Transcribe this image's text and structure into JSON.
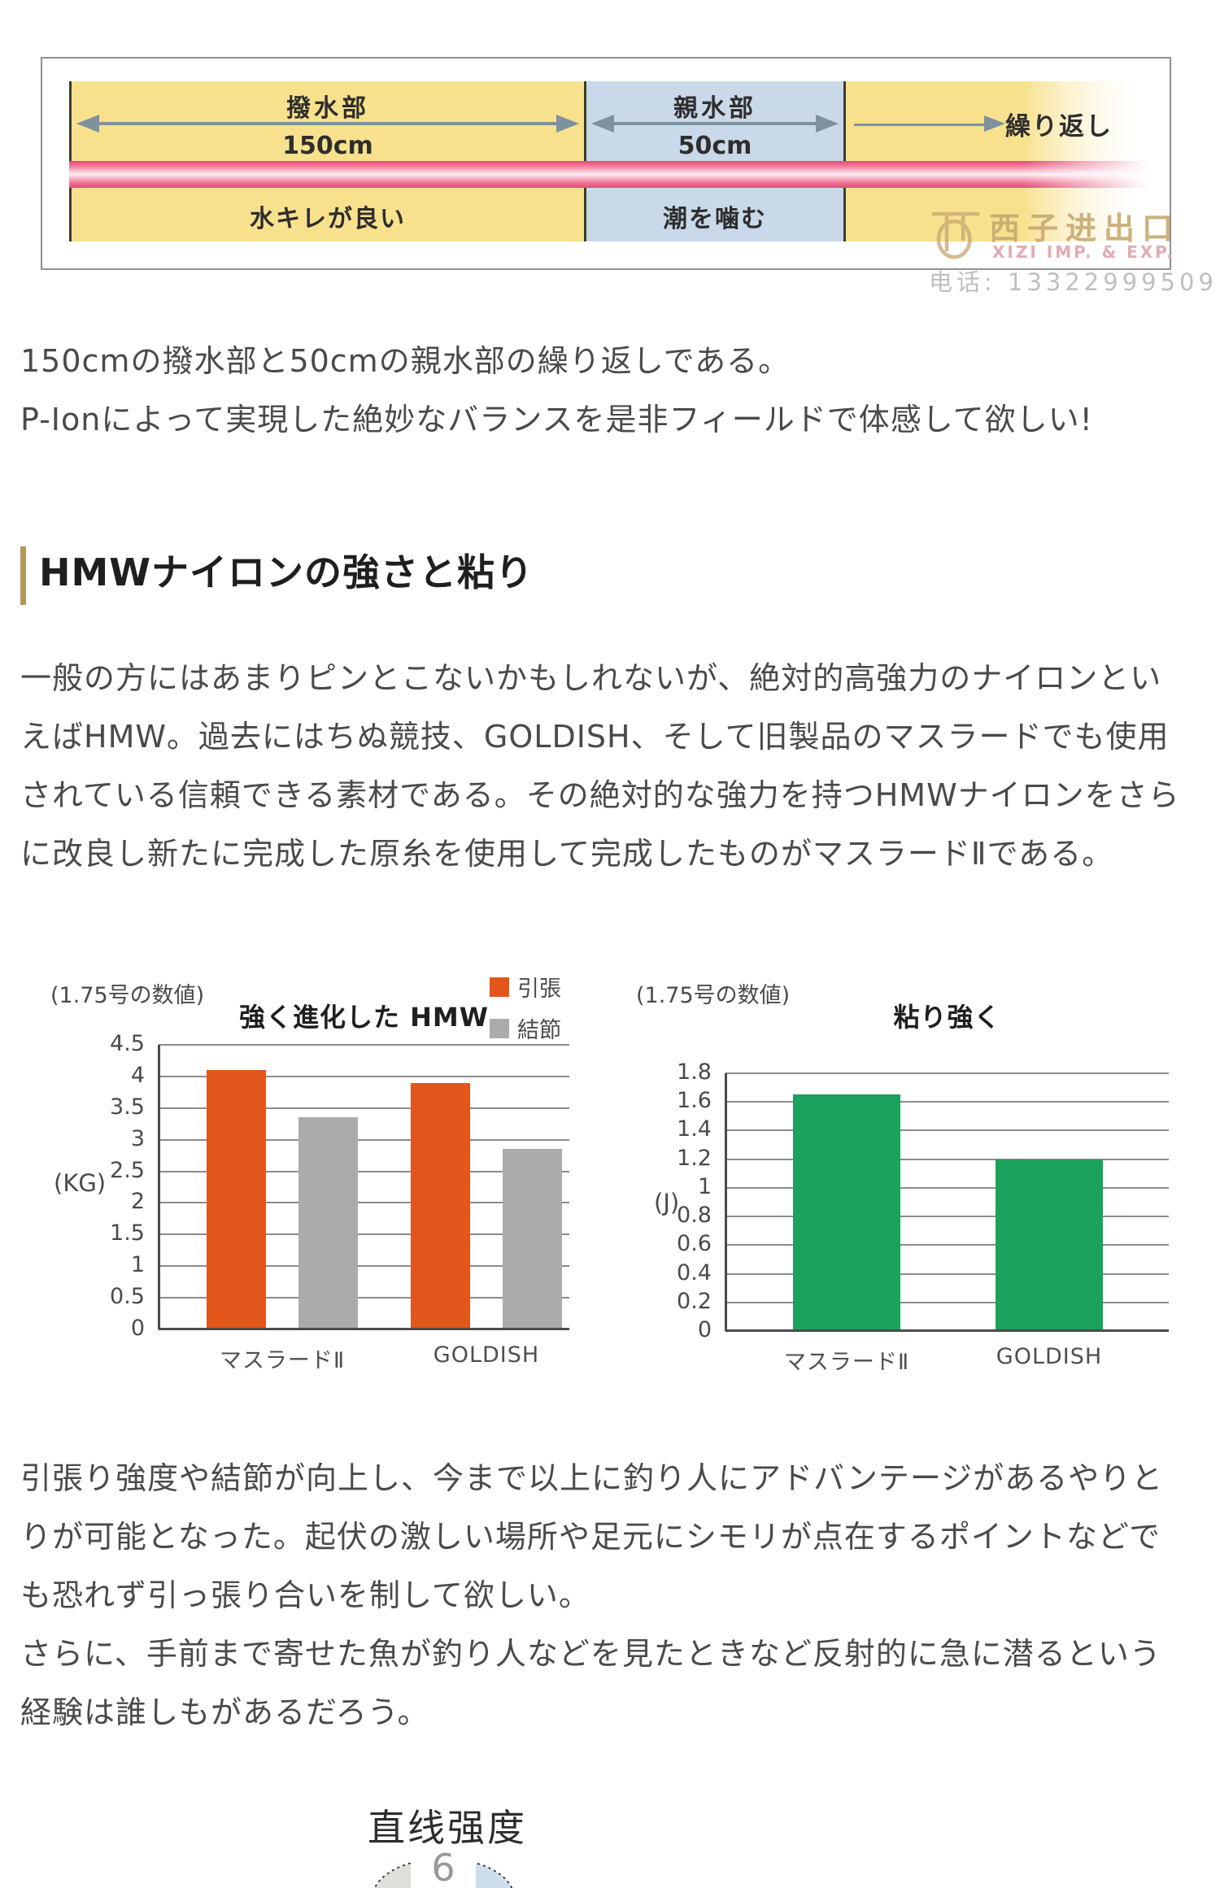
{
  "diagram": {
    "repellent": {
      "label": "撥水部",
      "length": "150cm",
      "note": "水キレが良い"
    },
    "hydrophilic": {
      "label": "親水部",
      "length": "50cm",
      "note": "潮を噛む"
    },
    "repeat_label": "繰り返し",
    "colors": {
      "repellent_bg": "#f8e18c",
      "hydrophilic_bg": "#c9d9e9",
      "line_pink": "#e8517b",
      "arrow": "#7d919e"
    }
  },
  "watermark": {
    "cn": "西子进出口",
    "en": "XIZI IMP. & EXP.",
    "phone": "电话: 13322999509"
  },
  "intro": {
    "text": "150cmの撥水部と50cmの親水部の繰り返しである。\nP-Ionによって実現した絶妙なバランスを是非フィールドで体感して欲しい!"
  },
  "section": {
    "heading": "HMWナイロンの強さと粘り",
    "paragraph": "一般の方にはあまりピンとこないかもしれないが、絶対的高強力のナイロンとい\nえばHMW。過去にはちぬ競技、GOLDISH、そして旧製品のマスラードでも使用\nされている信頼できる素材である。その絶対的な強力を持つHMWナイロンをさら\nに改良し新たに完成した原糸を使用して完成したものがマスラードⅡである。"
  },
  "chart_data": [
    {
      "type": "bar",
      "note": "(1.75号の数値)",
      "title": "強く進化した HMW",
      "ylabel": "(KG)",
      "ylim": [
        0,
        4.5
      ],
      "ytick_step": 0.5,
      "yticks": [
        "0",
        "0.5",
        "1",
        "1.5",
        "2",
        "2.5",
        "3",
        "3.5",
        "4",
        "4.5"
      ],
      "grid": true,
      "legend_position": "top-right",
      "categories": [
        "マスラードⅡ",
        "GOLDISH"
      ],
      "series": [
        {
          "name": "引張",
          "color": "#e2561c",
          "values": [
            4.1,
            3.9
          ]
        },
        {
          "name": "結節",
          "color": "#ababab",
          "values": [
            3.35,
            2.85
          ]
        }
      ]
    },
    {
      "type": "bar",
      "note": "(1.75号の数値)",
      "title": "粘り強く",
      "ylabel": "(J)",
      "ylim": [
        0,
        1.8
      ],
      "ytick_step": 0.2,
      "yticks": [
        "0",
        "0.2",
        "0.4",
        "0.6",
        "0.8",
        "1",
        "1.2",
        "1.4",
        "1.6",
        "1.8"
      ],
      "grid": true,
      "categories": [
        "マスラードⅡ",
        "GOLDISH"
      ],
      "series": [
        {
          "name": "粘り強く",
          "color": "#1ba25d",
          "values": [
            1.65,
            1.2
          ]
        }
      ]
    }
  ],
  "closing": {
    "paragraph": "引張り強度や結節が向上し、今まで以上に釣り人にアドバンテージがあるやりと\nりが可能となった。起伏の激しい場所や足元にシモリが点在するポイントなどで\nも恐れず引っ張り合いを制して欲しい。\nさらに、手前まで寄せた魚が釣り人などを見たときなど反射的に急に潜るという\n経験は誰しもがあるだろう。"
  },
  "radar": {
    "title": "直线强度",
    "apex_value": "6"
  }
}
